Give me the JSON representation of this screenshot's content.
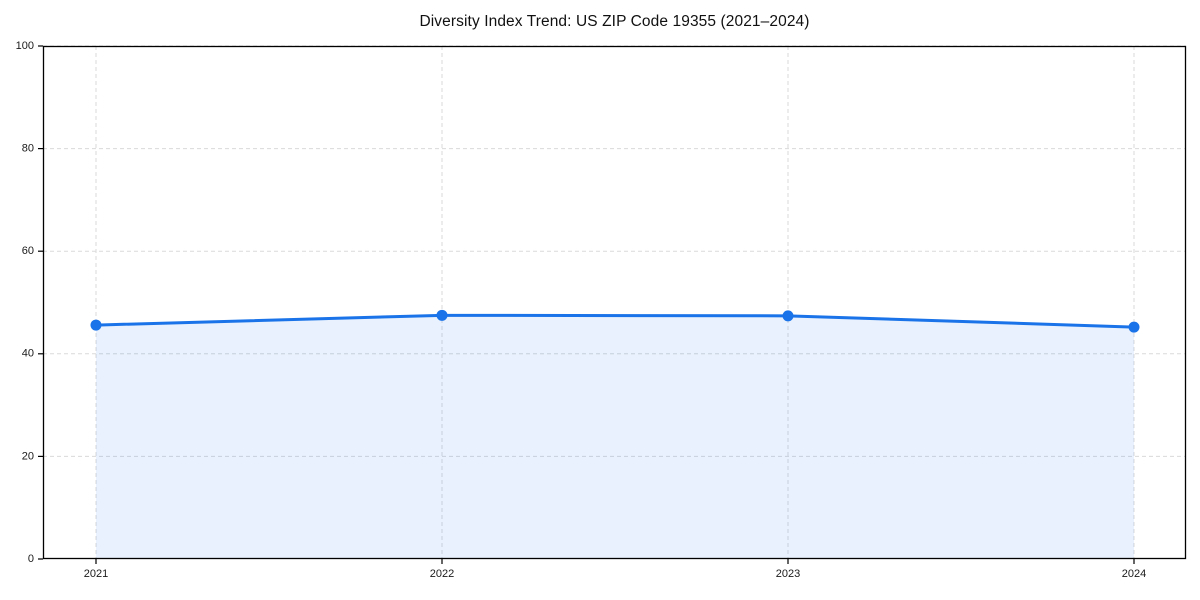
{
  "chart_data": {
    "type": "line",
    "area_fill": true,
    "title": "Diversity Index Trend: US ZIP Code 19355 (2021–2024)",
    "xlabel": "",
    "ylabel": "",
    "categories": [
      "2021",
      "2022",
      "2023",
      "2024"
    ],
    "series": [
      {
        "name": "Diversity Index",
        "values": [
          45.6,
          47.5,
          47.4,
          45.2
        ]
      }
    ],
    "ylim": [
      0,
      100
    ],
    "yticks": [
      0,
      20,
      40,
      60,
      80,
      100
    ],
    "grid": "on",
    "grid_style": "dashed",
    "legend_position": "none",
    "colors": {
      "line": "#1a73e8",
      "marker": "#1a73e8",
      "area": "rgba(26,115,232,0.10)",
      "grid": "#dadada",
      "spine": "#000000",
      "text": "#1a1a1a",
      "background": "#ffffff"
    }
  }
}
